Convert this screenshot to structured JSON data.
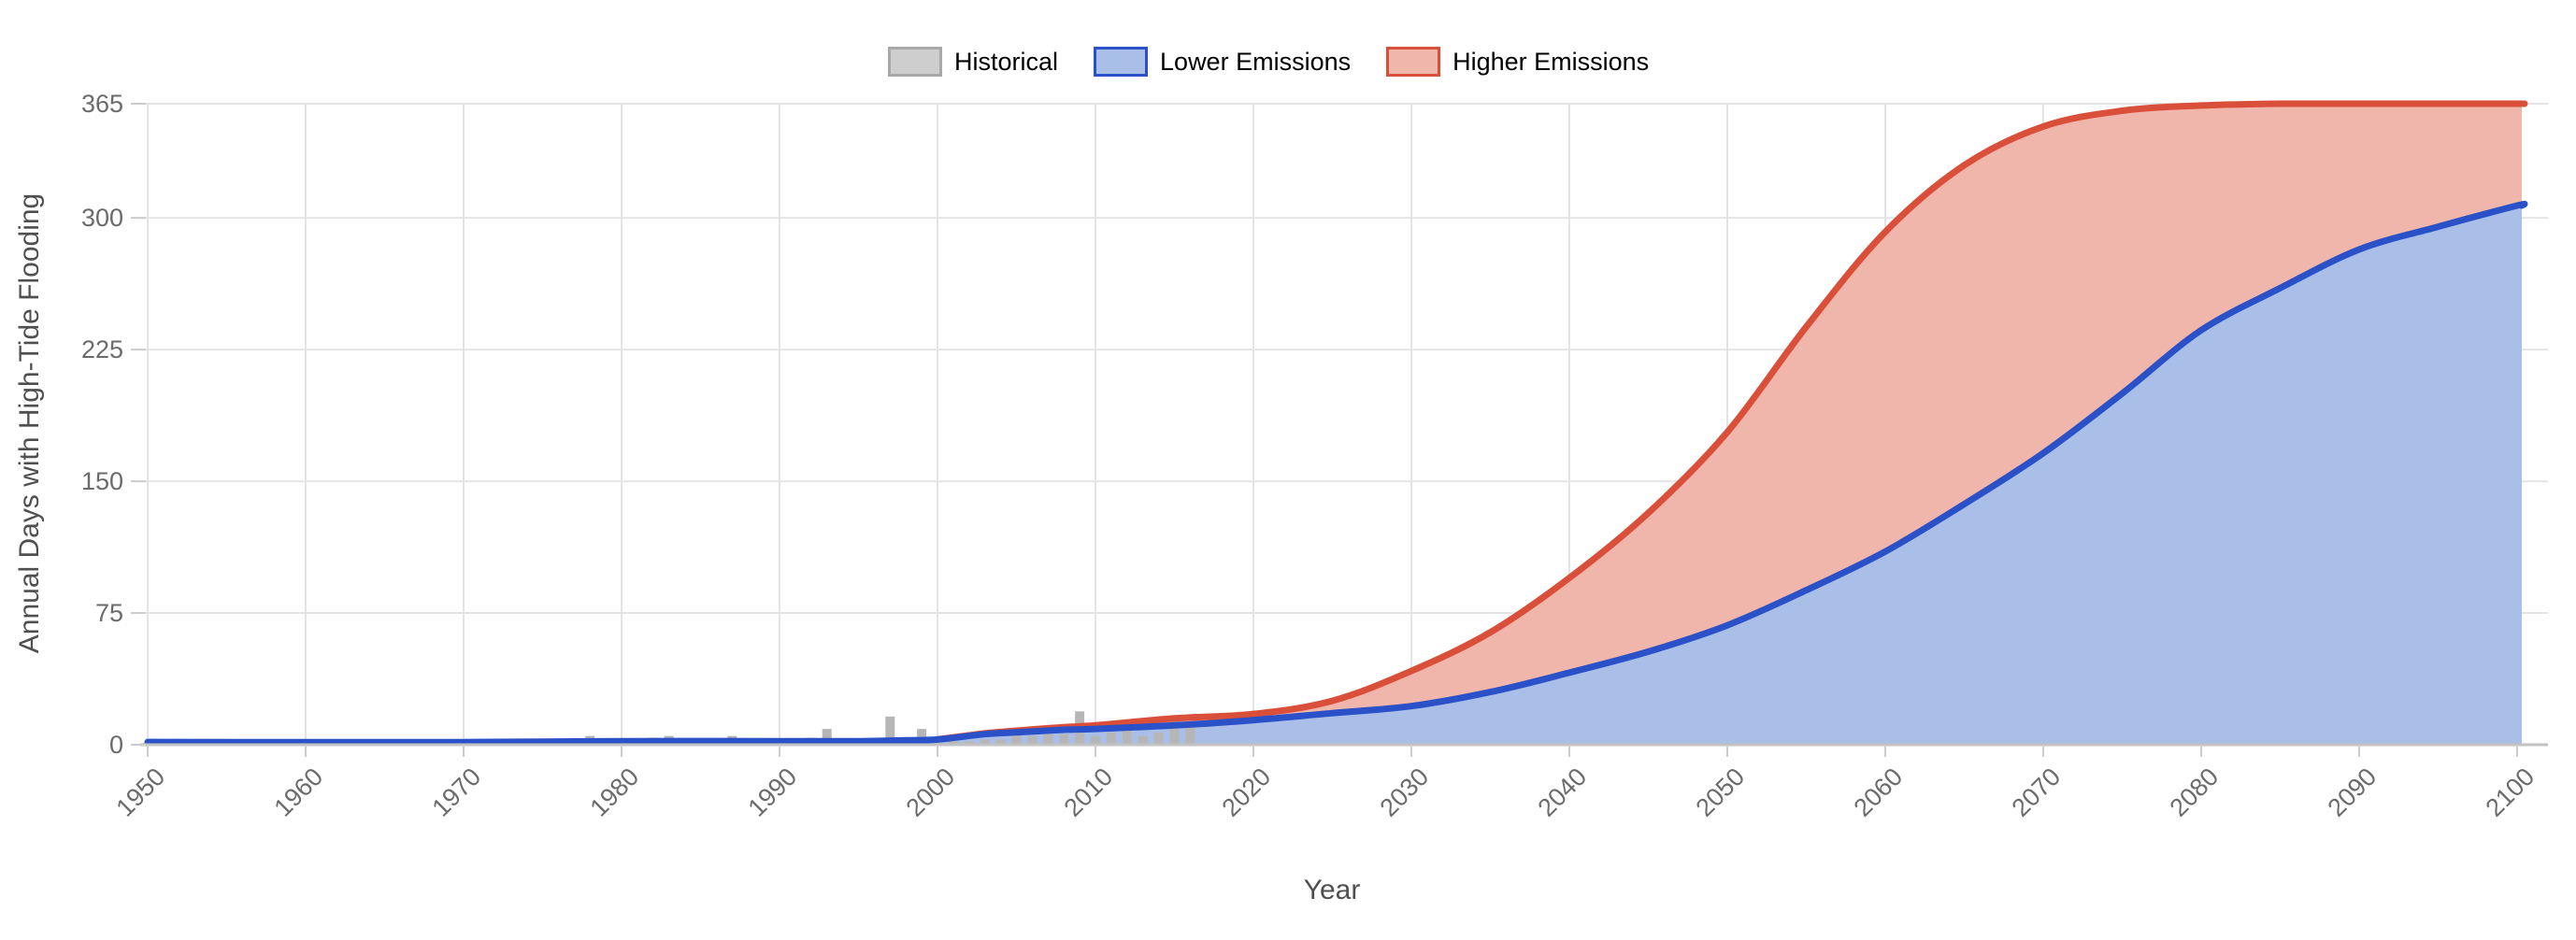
{
  "chart_data": {
    "type": "area",
    "title": "",
    "xlabel": "Year",
    "ylabel": "Annual Days with High-Tide Flooding",
    "xlim": [
      1950,
      2100
    ],
    "ylim": [
      0,
      365
    ],
    "grid": true,
    "legend_position": "top-center",
    "x_ticks": [
      1950,
      1960,
      1970,
      1980,
      1990,
      2000,
      2010,
      2020,
      2030,
      2040,
      2050,
      2060,
      2070,
      2080,
      2090,
      2100
    ],
    "y_ticks": [
      0,
      75,
      150,
      225,
      300,
      365
    ],
    "series": [
      {
        "name": "Historical",
        "type": "bar",
        "color": "#b6b6b6",
        "start_year": 1950,
        "end_year": 2016,
        "values": [
          1,
          0,
          1,
          0,
          1,
          0,
          1,
          0,
          1,
          0,
          1,
          0,
          1,
          1,
          0,
          1,
          0,
          1,
          0,
          1,
          0,
          1,
          1,
          3,
          2,
          1,
          1,
          3,
          5,
          1,
          1,
          2,
          4,
          5,
          2,
          1,
          3,
          5,
          3,
          3,
          1,
          2,
          4,
          9,
          2,
          3,
          2,
          16,
          4,
          9,
          3,
          2,
          2,
          3,
          3,
          6,
          5,
          6,
          6,
          19,
          5,
          7,
          8,
          5,
          7,
          16,
          11
        ]
      },
      {
        "name": "Lower Emissions",
        "type": "area",
        "line_color": "#2a51c8",
        "fill_color": "#a9bfe8",
        "points": [
          [
            1950,
            1.5
          ],
          [
            1960,
            1.5
          ],
          [
            1970,
            1.5
          ],
          [
            1980,
            2
          ],
          [
            1990,
            2
          ],
          [
            1995,
            2
          ],
          [
            1998,
            2.5
          ],
          [
            2000,
            3
          ],
          [
            2003,
            6
          ],
          [
            2005,
            7
          ],
          [
            2008,
            8.5
          ],
          [
            2010,
            9
          ],
          [
            2015,
            11
          ],
          [
            2020,
            14
          ],
          [
            2025,
            18
          ],
          [
            2030,
            22
          ],
          [
            2035,
            30
          ],
          [
            2040,
            41
          ],
          [
            2045,
            53
          ],
          [
            2050,
            68
          ],
          [
            2055,
            88
          ],
          [
            2060,
            110
          ],
          [
            2065,
            137
          ],
          [
            2070,
            166
          ],
          [
            2075,
            200
          ],
          [
            2080,
            236
          ],
          [
            2085,
            260
          ],
          [
            2090,
            282
          ],
          [
            2095,
            295
          ],
          [
            2100,
            307
          ]
        ]
      },
      {
        "name": "Higher Emissions",
        "type": "area",
        "line_color": "#d94f39",
        "fill_color": "#f0b6ab",
        "points": [
          [
            2000,
            3
          ],
          [
            2003,
            6.5
          ],
          [
            2005,
            8
          ],
          [
            2008,
            10
          ],
          [
            2010,
            11
          ],
          [
            2015,
            15
          ],
          [
            2020,
            17.5
          ],
          [
            2025,
            25
          ],
          [
            2030,
            42
          ],
          [
            2035,
            64
          ],
          [
            2040,
            95
          ],
          [
            2045,
            132
          ],
          [
            2050,
            178
          ],
          [
            2055,
            238
          ],
          [
            2060,
            292
          ],
          [
            2065,
            330
          ],
          [
            2070,
            352
          ],
          [
            2075,
            361
          ],
          [
            2080,
            364
          ],
          [
            2085,
            365
          ],
          [
            2090,
            365
          ],
          [
            2095,
            365
          ],
          [
            2100,
            365
          ]
        ]
      }
    ],
    "style": {
      "gridline_color": "#e4e4e4",
      "axis_line_color": "#c2c2c2",
      "tick_color": "#cccccc",
      "tick_label_color": "#6b6b6b",
      "bar_color": "#b6b6b6"
    }
  },
  "legend": {
    "items": [
      {
        "label": "Historical",
        "fill": "#cecece",
        "border": "#a8a8a8"
      },
      {
        "label": "Lower Emissions",
        "fill": "#a9bfe8",
        "border": "#2a51c8"
      },
      {
        "label": "Higher Emissions",
        "fill": "#f0b6ab",
        "border": "#d94f39"
      }
    ]
  }
}
